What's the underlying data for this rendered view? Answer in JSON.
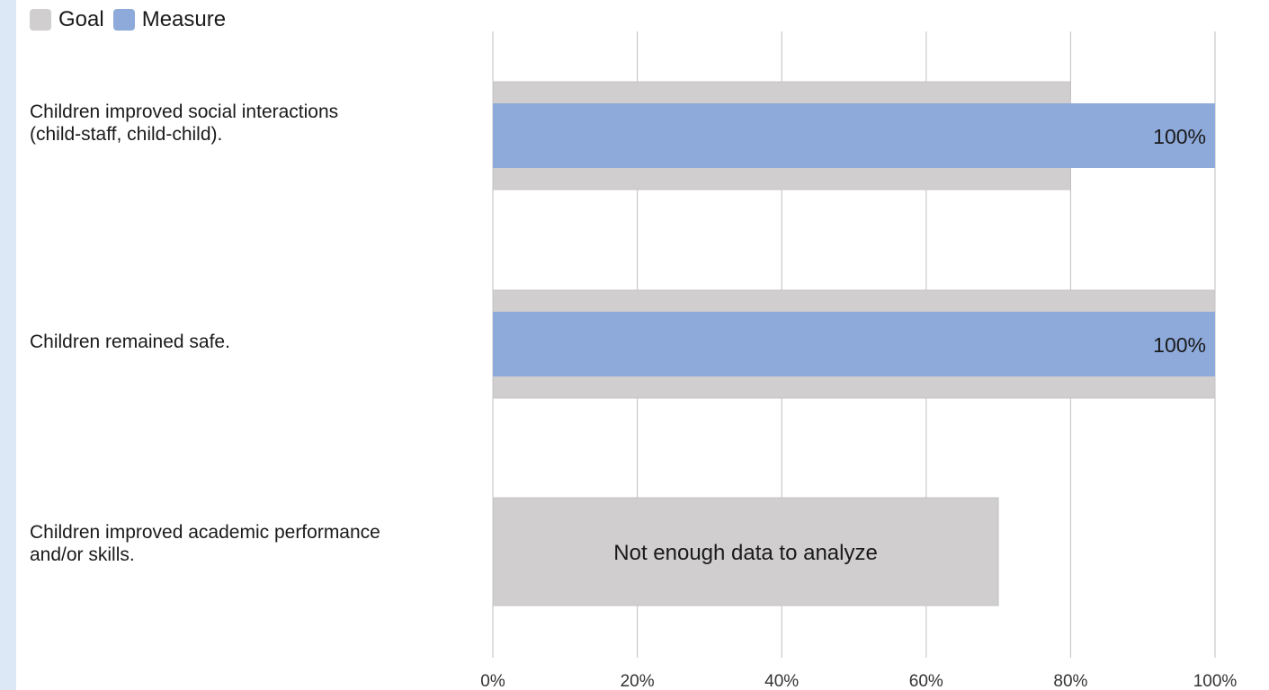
{
  "legend": {
    "goal_label": "Goal",
    "measure_label": "Measure"
  },
  "colors": {
    "goal": "#d0cece",
    "measure": "#8eaadb",
    "grid": "#bfbfbf"
  },
  "chart_data": {
    "type": "bar",
    "orientation": "horizontal",
    "categories": [
      "Children improved social interactions\n(child-staff, child-child).",
      "Children remained safe.",
      "Children improved academic performance\nand/or skills."
    ],
    "series": [
      {
        "name": "Goal",
        "values": [
          80,
          100,
          70
        ]
      },
      {
        "name": "Measure",
        "values": [
          100,
          100,
          null
        ]
      }
    ],
    "data_labels": [
      "100%",
      "100%",
      null
    ],
    "annotations": [
      {
        "category_index": 2,
        "text": "Not enough data to analyze"
      }
    ],
    "x_ticks": [
      "0%",
      "20%",
      "40%",
      "60%",
      "80%",
      "100%"
    ],
    "xlim": [
      0,
      100
    ],
    "grid": true,
    "legend_position": "top-left"
  }
}
